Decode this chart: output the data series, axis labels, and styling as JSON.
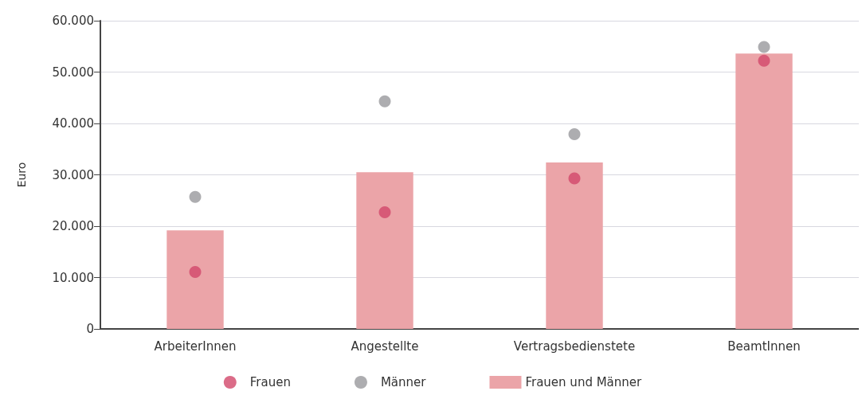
{
  "chart_data": {
    "type": "bar",
    "ylabel": "Euro",
    "categories": [
      "ArbeiterInnen",
      "Angestellte",
      "Vertragsbedienstete",
      "BeamtInnen"
    ],
    "series": [
      {
        "name": "Frauen",
        "type": "scatter",
        "color": "#d2476a",
        "values": [
          11100,
          22700,
          29300,
          52200
        ]
      },
      {
        "name": "Männer",
        "type": "scatter",
        "color": "#98989c",
        "values": [
          25700,
          44300,
          37900,
          54900
        ]
      },
      {
        "name": "Frauen und Männer",
        "color": "#eba4a8",
        "values": [
          19200,
          30500,
          32400,
          53600
        ]
      }
    ],
    "ylim": [
      0,
      60000
    ],
    "yticks": [
      {
        "value": 0,
        "label": "0"
      },
      {
        "value": 10000,
        "label": "10.000"
      },
      {
        "value": 20000,
        "label": "20.000"
      },
      {
        "value": 30000,
        "label": "30.000"
      },
      {
        "value": 40000,
        "label": "40.000"
      },
      {
        "value": 50000,
        "label": "50.000"
      },
      {
        "value": 60000,
        "label": "60.000"
      }
    ],
    "grid": "y",
    "legend": "bottom",
    "marker": "circle"
  }
}
